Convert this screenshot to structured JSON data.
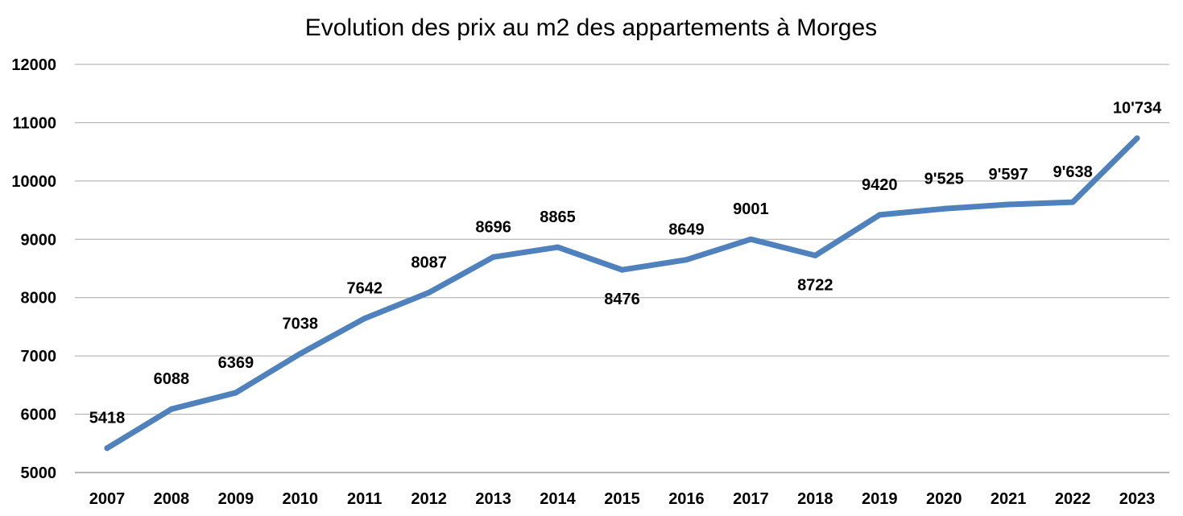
{
  "chart_data": {
    "type": "line",
    "title": "Evolution des prix au m2 des appartements à Morges",
    "xlabel": "",
    "ylabel": "",
    "categories": [
      "2007",
      "2008",
      "2009",
      "2010",
      "2011",
      "2012",
      "2013",
      "2014",
      "2015",
      "2016",
      "2017",
      "2018",
      "2019",
      "2020",
      "2021",
      "2022",
      "2023"
    ],
    "series": [
      {
        "values": [
          5418,
          6088,
          6369,
          7038,
          7642,
          8087,
          8696,
          8865,
          8476,
          8649,
          9001,
          8722,
          9420,
          9525,
          9597,
          9638,
          10734
        ],
        "data_labels": [
          "5418",
          "6088",
          "6369",
          "7038",
          "7642",
          "8087",
          "8696",
          "8865",
          "8476",
          "8649",
          "9001",
          "8722",
          "9420",
          "9'525",
          "9'597",
          "9'638",
          "10'734"
        ],
        "label_positions": [
          "above",
          "above",
          "above",
          "above",
          "above",
          "above",
          "above",
          "above",
          "below",
          "above",
          "above",
          "below",
          "above",
          "above",
          "above",
          "above",
          "above"
        ],
        "color": "#4f81bd"
      }
    ],
    "ylim": [
      5000,
      12000
    ],
    "yticks": [
      "5000",
      "6000",
      "7000",
      "8000",
      "9000",
      "10000",
      "11000",
      "12000"
    ],
    "grid": true,
    "legend": "none"
  }
}
